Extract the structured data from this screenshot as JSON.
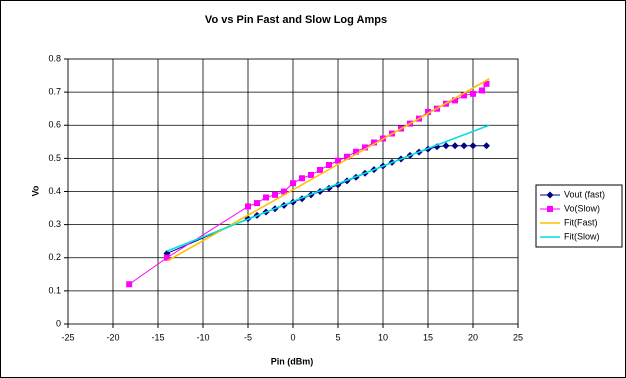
{
  "chart_data": {
    "type": "line",
    "title": "Vo vs Pin Fast and Slow Log Amps",
    "x_label": "Pin (dBm)",
    "y_label": "Vo",
    "xlim": [
      -25,
      25
    ],
    "xticks": [
      -25,
      -20,
      -15,
      -10,
      -5,
      0,
      5,
      10,
      15,
      20,
      25
    ],
    "ylim": [
      0,
      0.8
    ],
    "yticks": [
      0,
      0.1,
      0.2,
      0.3,
      0.4,
      0.5,
      0.6,
      0.7,
      0.8
    ],
    "grid": true,
    "legend": "right",
    "series": [
      {
        "name": "Vout (fast)",
        "color": "#000080",
        "marker": "diamond",
        "x": [
          -14,
          -5,
          -4,
          -3,
          -2,
          -1,
          0,
          1,
          2,
          3,
          4,
          5,
          6,
          7,
          8,
          9,
          10,
          11,
          12,
          13,
          14,
          15,
          16,
          17,
          18,
          19,
          20,
          21.5
        ],
        "values": [
          0.213,
          0.318,
          0.328,
          0.338,
          0.348,
          0.358,
          0.368,
          0.378,
          0.39,
          0.4,
          0.41,
          0.42,
          0.432,
          0.443,
          0.455,
          0.466,
          0.477,
          0.488,
          0.498,
          0.509,
          0.519,
          0.528,
          0.535,
          0.538,
          0.538,
          0.538,
          0.538,
          0.538
        ]
      },
      {
        "name": "Vo(Slow)",
        "color": "#ff00ff",
        "marker": "square",
        "x": [
          -18.2,
          -14,
          -5,
          -4,
          -3,
          -2,
          -1,
          0,
          1,
          2,
          3,
          4,
          5,
          6,
          7,
          8,
          9,
          10,
          11,
          12,
          13,
          14,
          15,
          16,
          17,
          18,
          19,
          20,
          21,
          21.5
        ],
        "values": [
          0.12,
          0.2,
          0.355,
          0.365,
          0.382,
          0.39,
          0.4,
          0.425,
          0.44,
          0.45,
          0.465,
          0.48,
          0.493,
          0.505,
          0.52,
          0.533,
          0.548,
          0.56,
          0.575,
          0.59,
          0.605,
          0.62,
          0.64,
          0.65,
          0.665,
          0.675,
          0.69,
          0.695,
          0.705,
          0.725
        ]
      },
      {
        "name": "Fit(Fast)",
        "color": "#ffc000",
        "marker": "none",
        "x": [
          -14,
          21.8
        ],
        "values": [
          0.19,
          0.74
        ]
      },
      {
        "name": "Fit(Slow)",
        "color": "#00e0e0",
        "marker": "none",
        "x": [
          -14,
          0,
          15,
          21.8
        ],
        "values": [
          0.22,
          0.37,
          0.53,
          0.6
        ]
      }
    ]
  }
}
